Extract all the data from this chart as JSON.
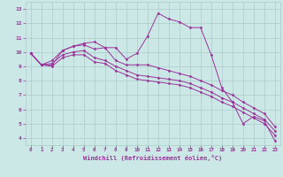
{
  "xlabel": "Windchill (Refroidissement éolien,°C)",
  "x_ticks": [
    0,
    1,
    2,
    3,
    4,
    5,
    6,
    7,
    8,
    9,
    10,
    11,
    12,
    13,
    14,
    15,
    16,
    17,
    18,
    19,
    20,
    21,
    22,
    23
  ],
  "y_ticks": [
    4,
    5,
    6,
    7,
    8,
    9,
    10,
    11,
    12,
    13
  ],
  "xlim": [
    -0.5,
    23.5
  ],
  "ylim": [
    3.5,
    13.5
  ],
  "bg_color": "#cce8e6",
  "grid_color": "#aaccca",
  "line_color": "#993399",
  "line1": [
    9.9,
    9.1,
    9.1,
    10.1,
    10.4,
    10.6,
    10.7,
    10.3,
    10.3,
    9.5,
    9.9,
    11.1,
    12.7,
    12.3,
    12.1,
    11.7,
    11.7,
    9.8,
    7.5,
    6.5,
    5.0,
    5.5,
    5.2,
    3.8
  ],
  "line2": [
    9.9,
    9.1,
    9.4,
    10.1,
    10.4,
    10.5,
    10.2,
    10.3,
    9.4,
    9.1,
    9.1,
    9.1,
    8.9,
    8.7,
    8.5,
    8.3,
    8.0,
    7.7,
    7.3,
    7.0,
    6.5,
    6.1,
    5.7,
    4.8
  ],
  "line3": [
    9.9,
    9.1,
    9.2,
    9.8,
    10.0,
    10.1,
    9.6,
    9.4,
    9.0,
    8.7,
    8.4,
    8.3,
    8.2,
    8.1,
    8.0,
    7.8,
    7.5,
    7.2,
    6.8,
    6.5,
    6.1,
    5.7,
    5.3,
    4.5
  ],
  "line4": [
    9.9,
    9.1,
    9.0,
    9.6,
    9.8,
    9.8,
    9.3,
    9.2,
    8.7,
    8.4,
    8.1,
    8.0,
    7.9,
    7.8,
    7.7,
    7.5,
    7.2,
    6.9,
    6.5,
    6.2,
    5.8,
    5.4,
    5.0,
    4.2
  ]
}
